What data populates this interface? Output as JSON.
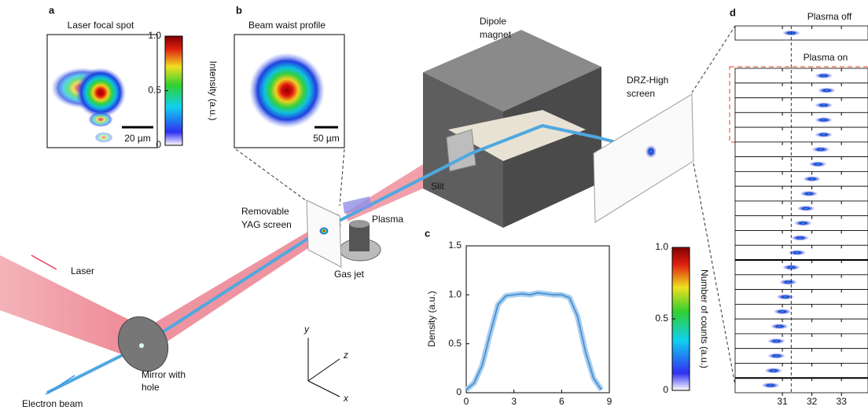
{
  "panel_a": {
    "label": "a",
    "title": "Laser focal spot",
    "scale_bar": "20 µm",
    "colorbar": {
      "label": "Intensity (a.u.)",
      "lim": [
        0,
        1
      ],
      "ticks": [
        0,
        0.5,
        {
          "value": 1,
          "label": "1.0"
        }
      ]
    }
  },
  "panel_b": {
    "label": "b",
    "title": "Beam waist profile",
    "scale_bar": "50 µm"
  },
  "schematic": {
    "magnet": [
      "Dipole",
      "magnet"
    ],
    "screen": [
      "DRZ-High",
      "screen"
    ],
    "slit": "Slit",
    "plasma": "Plasma",
    "yag": [
      "Removable",
      "YAG screen"
    ],
    "gas_jet": "Gas jet",
    "laser": "Laser",
    "mirror": [
      "Mirror with",
      "hole"
    ],
    "electron_beam": "Electron beam",
    "axes": {
      "x": "x",
      "y": "y",
      "z": "z"
    }
  },
  "chart_data": {
    "type": "line",
    "label": "c",
    "ylabel": "Density (a.u.)",
    "x": [
      0,
      0.5,
      1,
      1.5,
      2,
      2.5,
      3,
      3.5,
      4,
      4.5,
      5,
      5.5,
      6,
      6.5,
      7,
      7.5,
      8,
      8.5
    ],
    "values": [
      0.03,
      0.1,
      0.28,
      0.6,
      0.9,
      0.99,
      1.0,
      1.01,
      1.0,
      1.02,
      1.01,
      1.0,
      1.0,
      0.97,
      0.78,
      0.42,
      0.15,
      0.03
    ],
    "color": "#4a8fd0",
    "xlim": [
      0,
      9
    ],
    "ylim": [
      0,
      1.5
    ],
    "xticks": [
      0,
      3,
      6,
      9
    ],
    "yticks": [
      0,
      0.5,
      {
        "value": 1,
        "label": "1.0"
      },
      1.5
    ]
  },
  "panel_c_colorbar": {
    "label": "Number of counts (a.u.)",
    "lim": [
      0,
      1
    ],
    "ticks": [
      0,
      0.5,
      {
        "value": 1,
        "label": "1.0"
      }
    ]
  },
  "panel_d": {
    "label": "d",
    "plasma_off_title": "Plasma off",
    "plasma_on_title": "Plasma on",
    "xlim": [
      29.4,
      33.9
    ],
    "xticks": [
      31,
      32,
      33
    ],
    "plasma_off": [
      31.3
    ],
    "plasma_on": [
      32.4,
      32.5,
      32.4,
      32.4,
      32.4,
      32.3,
      32.2,
      32.0,
      31.9,
      31.8,
      31.7,
      31.6,
      31.5,
      31.3,
      31.2,
      31.1,
      31.0,
      30.9,
      30.8,
      30.8,
      30.7,
      30.6
    ]
  }
}
